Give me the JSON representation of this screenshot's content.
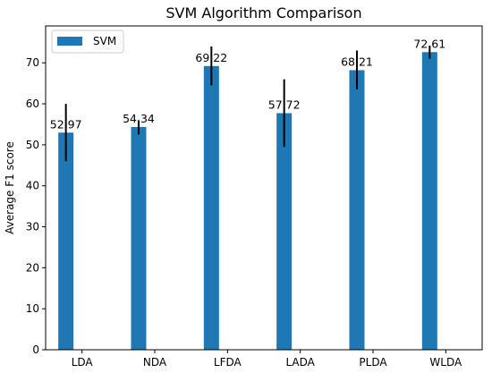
{
  "chart_data": {
    "type": "bar",
    "title": "SVM Algorithm Comparison",
    "xlabel": "",
    "ylabel": "Average F1 score",
    "categories": [
      "LDA",
      "NDA",
      "LFDA",
      "LADA",
      "PLDA",
      "WLDA"
    ],
    "series": [
      {
        "name": "SVM",
        "color": "#1f77b4",
        "values": [
          52.97,
          54.34,
          69.22,
          57.72,
          68.21,
          72.61
        ],
        "labels": [
          "52.97",
          "54.34",
          "69.22",
          "57.72",
          "68.21",
          "72.61"
        ],
        "error": [
          [
            46.0,
            60.0
          ],
          [
            52.5,
            56.0
          ],
          [
            64.5,
            74.0
          ],
          [
            49.5,
            66.0
          ],
          [
            63.5,
            73.0
          ],
          [
            71.0,
            74.2
          ]
        ]
      }
    ],
    "yticks": [
      0,
      10,
      20,
      30,
      40,
      50,
      60,
      70
    ],
    "ylim": [
      0,
      79
    ],
    "grid": false,
    "legend": "top-left"
  }
}
